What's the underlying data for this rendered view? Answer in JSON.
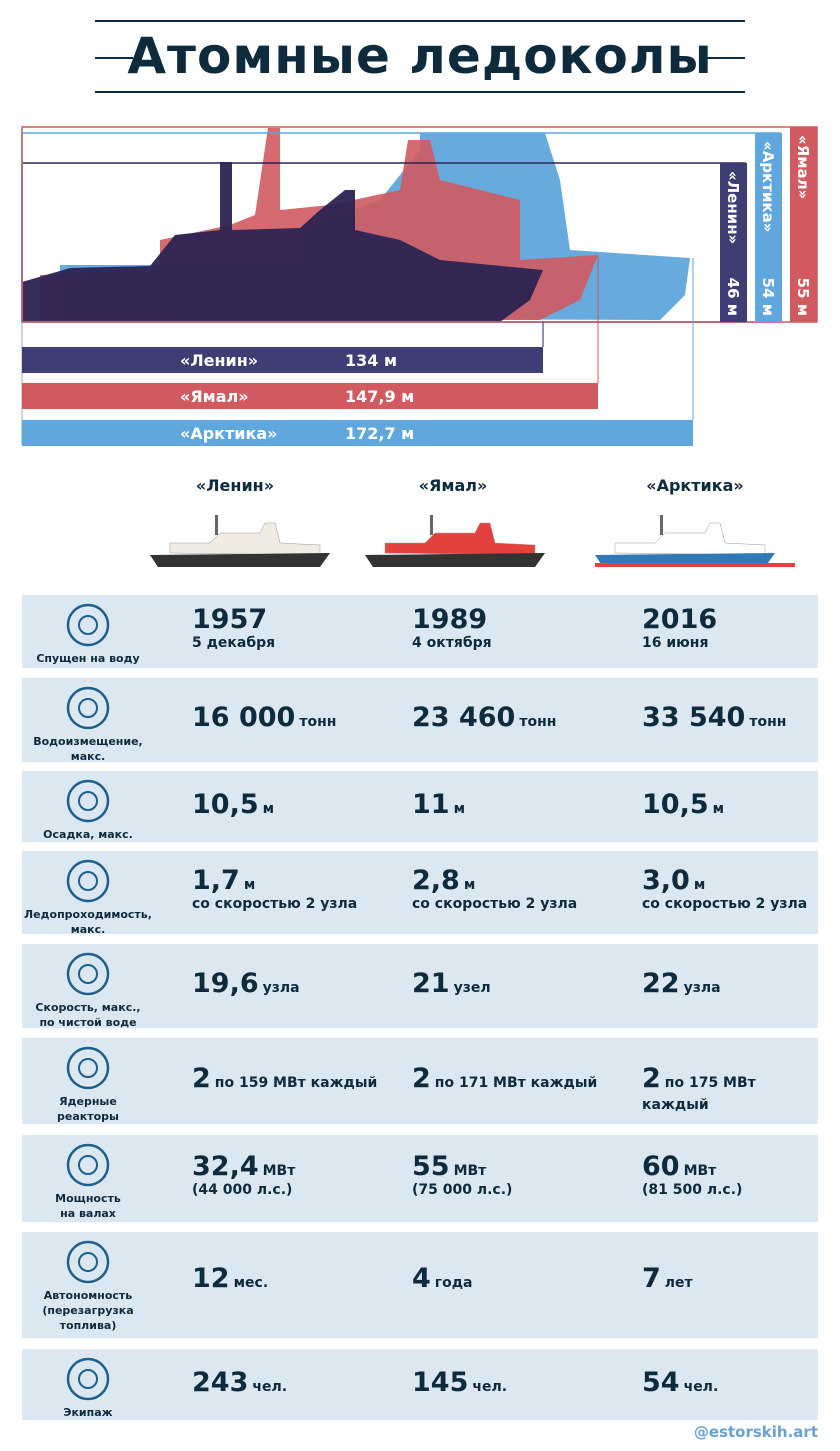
{
  "title": "Атомные ледоколы",
  "lengths": [
    {
      "name": "«Ленин»",
      "value": "134 м"
    },
    {
      "name": "«Ямал»",
      "value": "147,9 м"
    },
    {
      "name": "«Арктика»",
      "value": "172,7 м"
    }
  ],
  "heights": [
    {
      "name": "«Ленин»",
      "value": "46 м"
    },
    {
      "name": "«Арктика»",
      "value": "54 м"
    },
    {
      "name": "«Ямал»",
      "value": "55 м"
    }
  ],
  "ships": [
    "«Ленин»",
    "«Ямал»",
    "«Арктика»"
  ],
  "rows": [
    {
      "label": [
        "Спущен на воду"
      ],
      "cells": [
        {
          "main": "1957",
          "sub": "5 декабря"
        },
        {
          "main": "1989",
          "sub": "4 октября"
        },
        {
          "main": "2016",
          "sub": "16 июня"
        }
      ]
    },
    {
      "label": [
        "Водоизмещение,",
        "макс."
      ],
      "cells": [
        {
          "main": "16 000",
          "unit": "тонн"
        },
        {
          "main": "23 460",
          "unit": "тонн"
        },
        {
          "main": "33 540",
          "unit": "тонн"
        }
      ]
    },
    {
      "label": [
        "Осадка, макс."
      ],
      "cells": [
        {
          "main": "10,5",
          "unit": "м"
        },
        {
          "main": "11",
          "unit": "м"
        },
        {
          "main": "10,5",
          "unit": "м"
        }
      ]
    },
    {
      "label": [
        "Ледопроходимость,",
        "макс."
      ],
      "cells": [
        {
          "main": "1,7",
          "unit": "м",
          "sub": "со скоростью 2 узла"
        },
        {
          "main": "2,8",
          "unit": "м",
          "sub": "со скоростью 2 узла"
        },
        {
          "main": "3,0",
          "unit": "м",
          "sub": "со скоростью 2 узла"
        }
      ]
    },
    {
      "label": [
        "Скорость, макс.,",
        "по чистой воде"
      ],
      "cells": [
        {
          "main": "19,6",
          "unit": "узла"
        },
        {
          "main": "21",
          "unit": "узел"
        },
        {
          "main": "22",
          "unit": "узла"
        }
      ]
    },
    {
      "label": [
        "Ядерные",
        "реакторы"
      ],
      "cells": [
        {
          "main": "2",
          "unit": "по 159 МВт каждый"
        },
        {
          "main": "2",
          "unit": "по 171 МВт каждый"
        },
        {
          "main": "2",
          "unit": "по 175 МВт каждый"
        }
      ]
    },
    {
      "label": [
        "Мощность",
        "на валах"
      ],
      "cells": [
        {
          "main": "32,4",
          "unit": "МВт",
          "sub": "(44 000 л.с.)"
        },
        {
          "main": "55",
          "unit": "МВт",
          "sub": "(75 000 л.с.)"
        },
        {
          "main": "60",
          "unit": "МВт",
          "sub": "(81 500 л.с.)"
        }
      ]
    },
    {
      "label": [
        "Автономность",
        "(перезагрузка",
        "топлива)"
      ],
      "cells": [
        {
          "main": "12",
          "unit": "мес."
        },
        {
          "main": "4",
          "unit": "года"
        },
        {
          "main": "7",
          "unit": "лет"
        }
      ]
    },
    {
      "label": [
        "Экипаж"
      ],
      "cells": [
        {
          "main": "243",
          "unit": "чел."
        },
        {
          "main": "145",
          "unit": "чел."
        },
        {
          "main": "54",
          "unit": "чел."
        }
      ]
    }
  ],
  "credit": "@estorskih.art"
}
